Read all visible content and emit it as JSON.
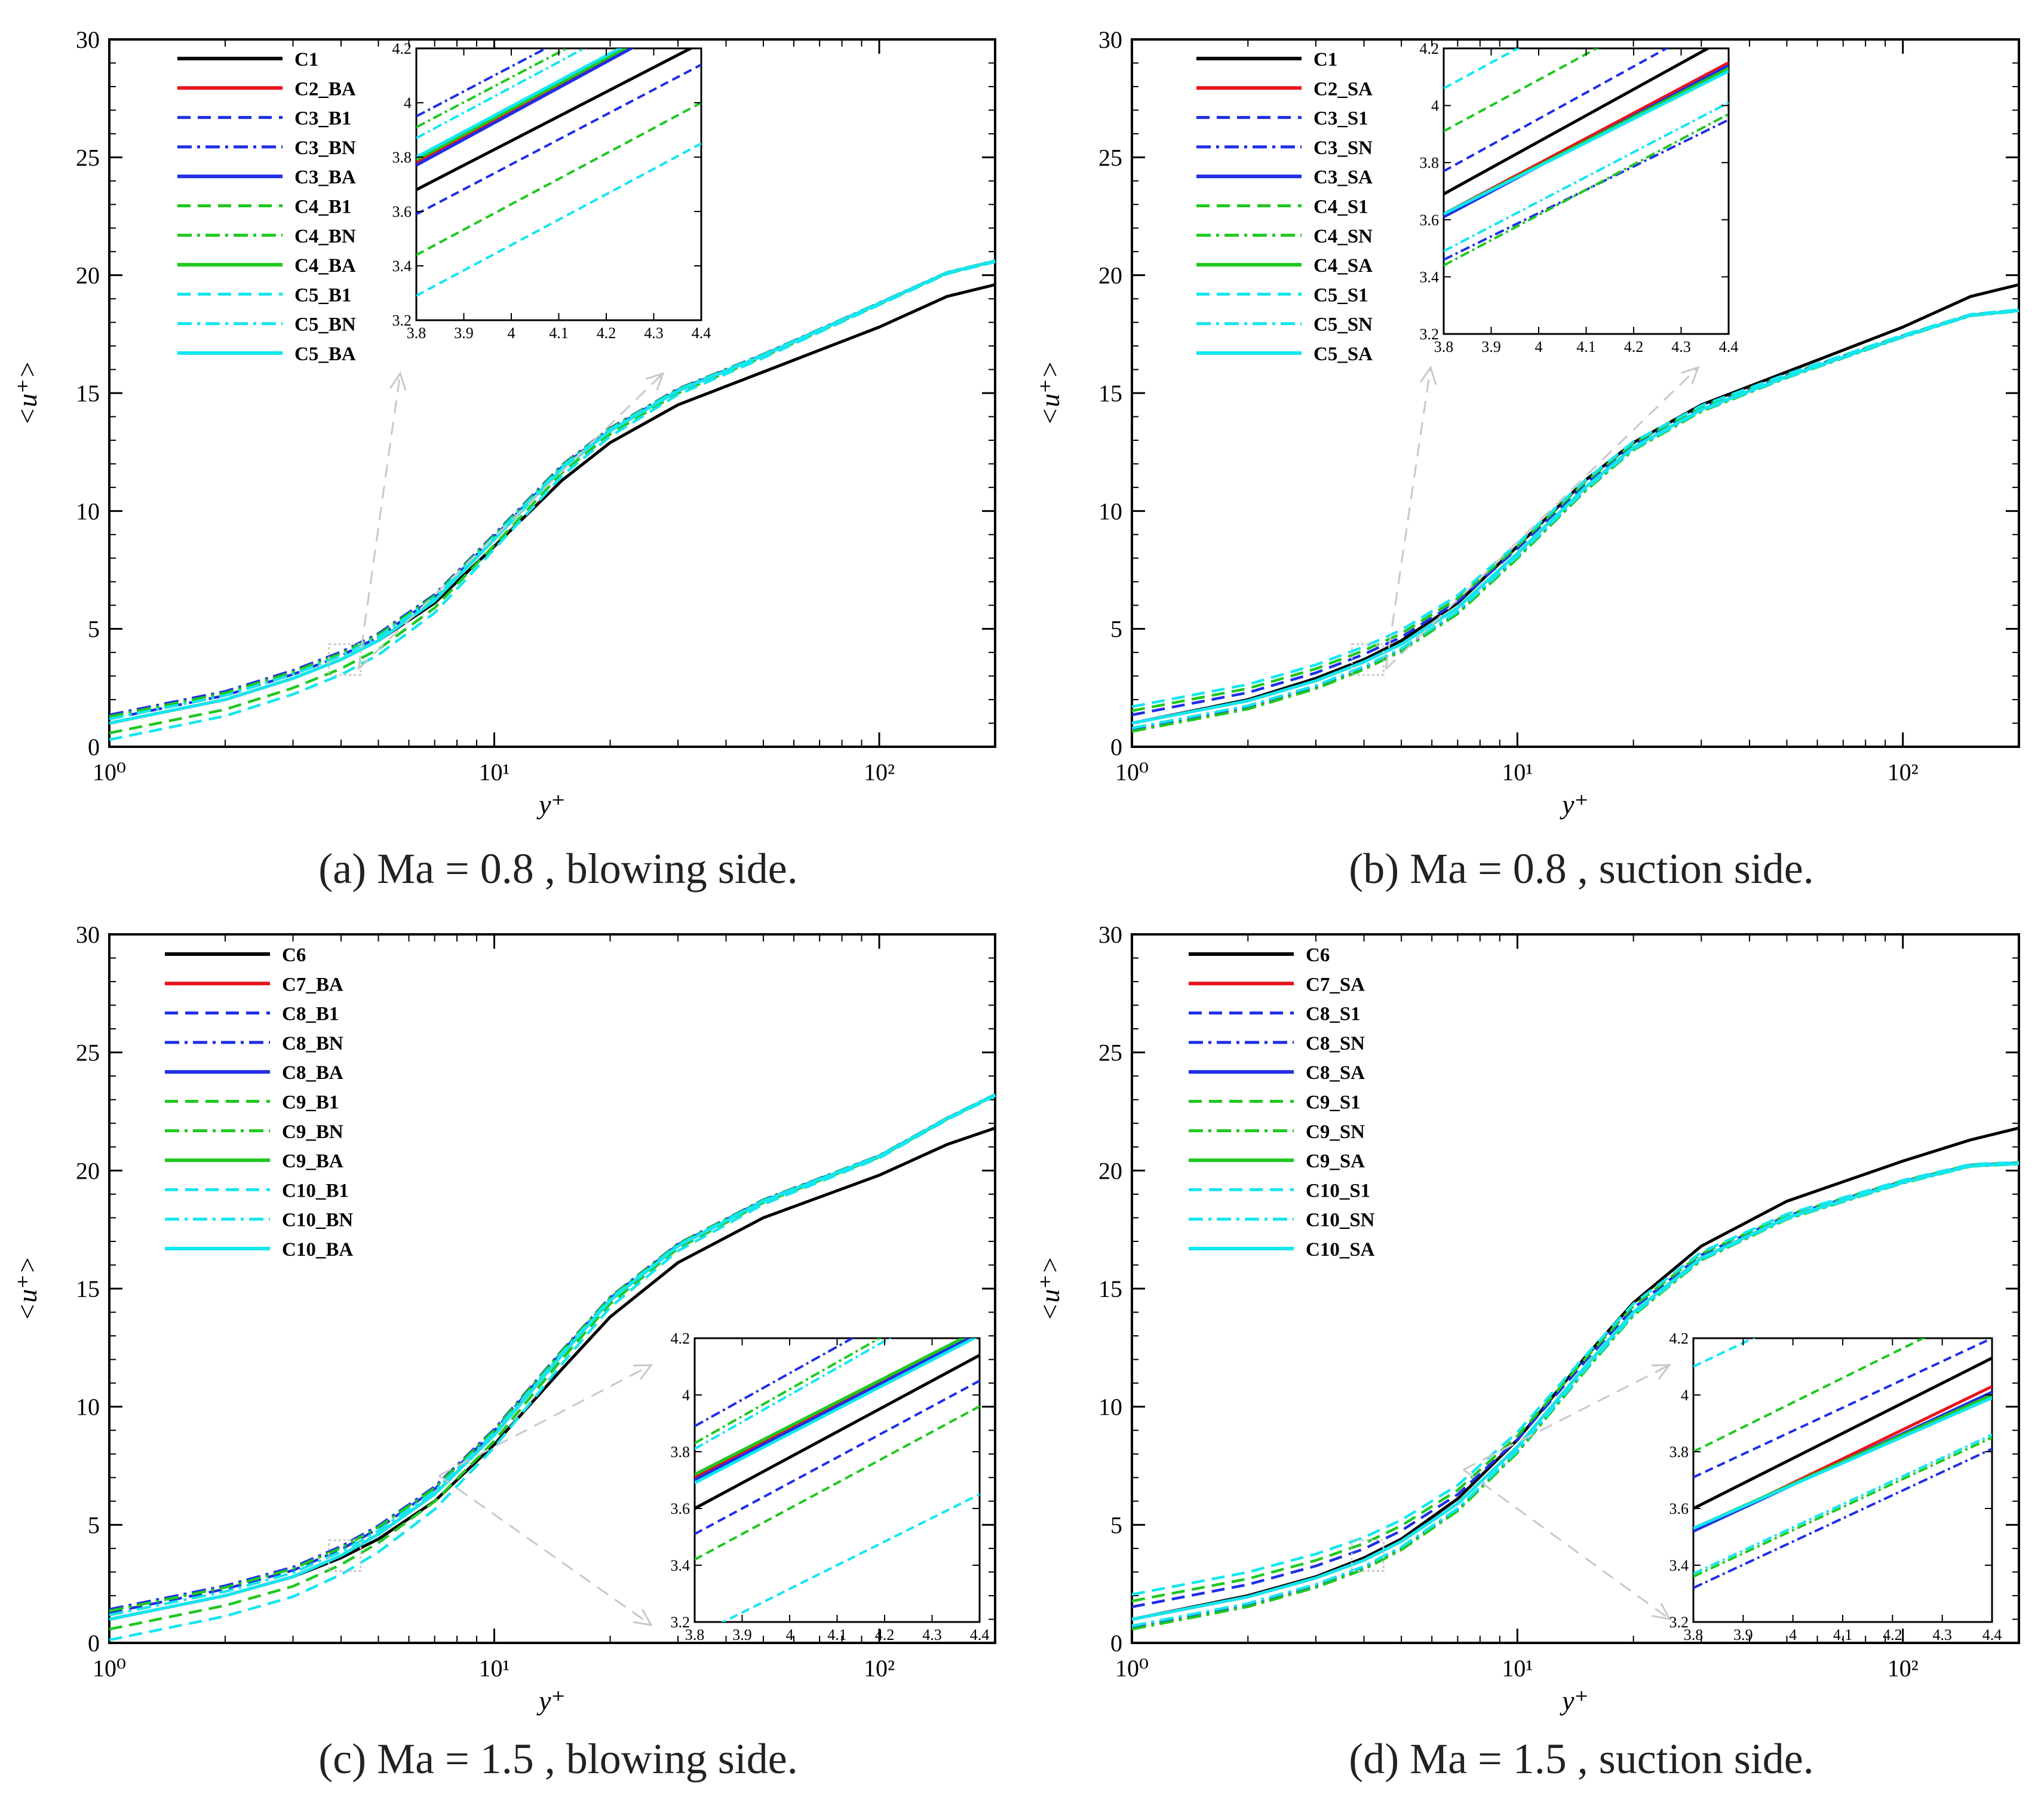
{
  "chart_data": [
    {
      "id": "a",
      "type": "line",
      "xscale": "log",
      "xlim": [
        1,
        200
      ],
      "ylim": [
        0,
        30
      ],
      "xlabel": "y⁺",
      "ylabel": "<u⁺>",
      "x_ticks": [
        "10⁰",
        "10¹",
        "10²"
      ],
      "y_ticks": [
        "0",
        "5",
        "10",
        "15",
        "20",
        "25",
        "30"
      ],
      "caption": {
        "tag": "(a)",
        "text": "Ma = 0.8 , blowing side."
      },
      "legend": [
        "C1",
        "C2_BA",
        "C3_B1",
        "C3_BN",
        "C3_BA",
        "C4_B1",
        "C4_BN",
        "C4_BA",
        "C5_B1",
        "C5_BN",
        "C5_BA"
      ],
      "legend_position": "top-left",
      "main_curves": {
        "reference": {
          "x": [
            1,
            2,
            3,
            4,
            5,
            7,
            10,
            15,
            20,
            30,
            50,
            100,
            150,
            200
          ],
          "y": [
            1.0,
            2.0,
            2.9,
            3.7,
            4.5,
            6.1,
            8.5,
            11.3,
            12.9,
            14.5,
            15.9,
            17.8,
            19.1,
            19.6
          ]
        },
        "control": {
          "x": [
            1,
            2,
            3,
            4,
            5,
            7,
            10,
            15,
            20,
            30,
            50,
            100,
            150,
            200
          ],
          "y": [
            1.0,
            2.0,
            2.9,
            3.7,
            4.5,
            6.2,
            8.8,
            11.8,
            13.4,
            15.1,
            16.6,
            18.8,
            20.1,
            20.6
          ]
        },
        "offsets": [
          0,
          0,
          0.05,
          0.1,
          0,
          -0.12,
          0.08,
          0,
          -0.2,
          0.05,
          0
        ]
      },
      "inset": {
        "xlim": [
          3.8,
          4.4
        ],
        "ylim": [
          3.2,
          4.2
        ],
        "x_ticks": [
          "3.8",
          "3.9",
          "4",
          "4.1",
          "4.2",
          "4.3",
          "4.4"
        ],
        "y_ticks": [
          "3.2",
          "3.4",
          "3.6",
          "3.8",
          "4",
          "4.2"
        ],
        "series": [
          {
            "name": "C1",
            "y": [
              3.68,
              4.22
            ]
          },
          {
            "name": "C2_BA",
            "y": [
              3.78,
              4.35
            ]
          },
          {
            "name": "C3_B1",
            "y": [
              3.59,
              4.14
            ]
          },
          {
            "name": "C3_BN",
            "y": [
              3.95,
              4.5
            ]
          },
          {
            "name": "C3_BA",
            "y": [
              3.77,
              4.34
            ]
          },
          {
            "name": "C4_B1",
            "y": [
              3.44,
              4.0
            ]
          },
          {
            "name": "C4_BN",
            "y": [
              3.91,
              4.46
            ]
          },
          {
            "name": "C4_BA",
            "y": [
              3.79,
              4.35
            ]
          },
          {
            "name": "C5_B1",
            "y": [
              3.29,
              3.85
            ]
          },
          {
            "name": "C5_BN",
            "y": [
              3.87,
              4.43
            ]
          },
          {
            "name": "C5_BA",
            "y": [
              3.8,
              4.36
            ]
          }
        ]
      }
    },
    {
      "id": "b",
      "type": "line",
      "xscale": "log",
      "xlim": [
        1,
        200
      ],
      "ylim": [
        0,
        30
      ],
      "xlabel": "y⁺",
      "ylabel": "<u⁺>",
      "x_ticks": [
        "10⁰",
        "10¹",
        "10²"
      ],
      "y_ticks": [
        "0",
        "5",
        "10",
        "15",
        "20",
        "25",
        "30"
      ],
      "caption": {
        "tag": "(b)",
        "text": "Ma = 0.8 , suction side."
      },
      "legend": [
        "C1",
        "C2_SA",
        "C3_S1",
        "C3_SN",
        "C3_SA",
        "C4_S1",
        "C4_SN",
        "C4_SA",
        "C5_S1",
        "C5_SN",
        "C5_SA"
      ],
      "legend_position": "top-left",
      "main_curves": {
        "reference": {
          "x": [
            1,
            2,
            3,
            4,
            5,
            7,
            10,
            15,
            20,
            30,
            50,
            100,
            150,
            200
          ],
          "y": [
            1.0,
            2.0,
            2.9,
            3.7,
            4.5,
            6.1,
            8.5,
            11.3,
            12.9,
            14.5,
            15.9,
            17.8,
            19.1,
            19.6
          ]
        },
        "control": {
          "x": [
            1,
            2,
            3,
            4,
            5,
            7,
            10,
            15,
            20,
            30,
            50,
            100,
            150,
            200
          ],
          "y": [
            1.0,
            1.95,
            2.8,
            3.6,
            4.35,
            5.9,
            8.2,
            11.0,
            12.7,
            14.3,
            15.7,
            17.4,
            18.3,
            18.5
          ]
        },
        "offsets": [
          0,
          0,
          0.1,
          -0.08,
          0,
          0.15,
          -0.1,
          0,
          0.2,
          -0.06,
          0
        ]
      },
      "inset": {
        "xlim": [
          3.8,
          4.4
        ],
        "ylim": [
          3.2,
          4.2
        ],
        "x_ticks": [
          "3.8",
          "3.9",
          "4",
          "4.1",
          "4.2",
          "4.3",
          "4.4"
        ],
        "y_ticks": [
          "3.2",
          "3.4",
          "3.6",
          "3.8",
          "4",
          "4.2"
        ],
        "series": [
          {
            "name": "C1",
            "y": [
              3.69,
              4.24
            ]
          },
          {
            "name": "C2_SA",
            "y": [
              3.62,
              4.15
            ]
          },
          {
            "name": "C3_S1",
            "y": [
              3.77,
              4.32
            ]
          },
          {
            "name": "C3_SN",
            "y": [
              3.46,
              3.95
            ]
          },
          {
            "name": "C3_SA",
            "y": [
              3.61,
              4.14
            ]
          },
          {
            "name": "C4_S1",
            "y": [
              3.91,
              4.45
            ]
          },
          {
            "name": "C4_SN",
            "y": [
              3.44,
              3.97
            ]
          },
          {
            "name": "C4_SA",
            "y": [
              3.62,
              4.13
            ]
          },
          {
            "name": "C5_S1",
            "y": [
              4.06,
              4.6
            ]
          },
          {
            "name": "C5_SN",
            "y": [
              3.49,
              4.01
            ]
          },
          {
            "name": "C5_SA",
            "y": [
              3.62,
              4.12
            ]
          }
        ]
      }
    },
    {
      "id": "c",
      "type": "line",
      "xscale": "log",
      "xlim": [
        1,
        200
      ],
      "ylim": [
        0,
        30
      ],
      "xlabel": "y⁺",
      "ylabel": "<u⁺>",
      "x_ticks": [
        "10⁰",
        "10¹",
        "10²"
      ],
      "y_ticks": [
        "0",
        "5",
        "10",
        "15",
        "20",
        "25",
        "30"
      ],
      "caption": {
        "tag": "(c)",
        "text": "Ma = 1.5 , blowing side."
      },
      "legend": [
        "C6",
        "C7_BA",
        "C8_B1",
        "C8_BN",
        "C8_BA",
        "C9_B1",
        "C9_BN",
        "C9_BA",
        "C10_B1",
        "C10_BN",
        "C10_BA"
      ],
      "legend_position": "top-left",
      "main_curves": {
        "reference": {
          "x": [
            1,
            2,
            3,
            4,
            5,
            7,
            10,
            15,
            20,
            30,
            50,
            100,
            150,
            200
          ],
          "y": [
            1.0,
            2.0,
            2.8,
            3.6,
            4.4,
            6.0,
            8.4,
            11.6,
            13.8,
            16.1,
            18.0,
            19.8,
            21.1,
            21.8
          ]
        },
        "control": {
          "x": [
            1,
            2,
            3,
            4,
            5,
            7,
            10,
            15,
            20,
            30,
            50,
            100,
            150,
            200
          ],
          "y": [
            1.0,
            2.0,
            2.8,
            3.7,
            4.6,
            6.3,
            8.8,
            12.2,
            14.5,
            16.8,
            18.7,
            20.6,
            22.2,
            23.2
          ]
        },
        "offsets": [
          0,
          0,
          0.08,
          0.12,
          0,
          -0.12,
          0.1,
          0,
          -0.25,
          0.05,
          0
        ]
      },
      "inset": {
        "xlim": [
          3.8,
          4.4
        ],
        "ylim": [
          3.2,
          4.2
        ],
        "x_ticks": [
          "3.8",
          "3.9",
          "4",
          "4.1",
          "4.2",
          "4.3",
          "4.4"
        ],
        "y_ticks": [
          "3.2",
          "3.4",
          "3.6",
          "3.8",
          "4",
          "4.2"
        ],
        "series": [
          {
            "name": "C6",
            "y": [
              3.6,
              4.14
            ]
          },
          {
            "name": "C7_BA",
            "y": [
              3.71,
              4.22
            ]
          },
          {
            "name": "C8_B1",
            "y": [
              3.51,
              4.05
            ]
          },
          {
            "name": "C8_BN",
            "y": [
              3.89,
              4.45
            ]
          },
          {
            "name": "C8_BA",
            "y": [
              3.7,
              4.22
            ]
          },
          {
            "name": "C9_B1",
            "y": [
              3.42,
              3.96
            ]
          },
          {
            "name": "C9_BN",
            "y": [
              3.83,
              4.4
            ]
          },
          {
            "name": "C9_BA",
            "y": [
              3.72,
              4.23
            ]
          },
          {
            "name": "C10_B1",
            "y": [
              3.15,
              3.65
            ]
          },
          {
            "name": "C10_BN",
            "y": [
              3.81,
              4.38
            ]
          },
          {
            "name": "C10_BA",
            "y": [
              3.69,
              4.21
            ]
          }
        ]
      }
    },
    {
      "id": "d",
      "type": "line",
      "xscale": "log",
      "xlim": [
        1,
        200
      ],
      "ylim": [
        0,
        30
      ],
      "xlabel": "y⁺",
      "ylabel": "<u⁺>",
      "x_ticks": [
        "10⁰",
        "10¹",
        "10²"
      ],
      "y_ticks": [
        "0",
        "5",
        "10",
        "15",
        "20",
        "25",
        "30"
      ],
      "caption": {
        "tag": "(d)",
        "text": "Ma = 1.5 , suction side."
      },
      "legend": [
        "C6",
        "C7_SA",
        "C8_S1",
        "C8_SN",
        "C8_SA",
        "C9_S1",
        "C9_SN",
        "C9_SA",
        "C10_S1",
        "C10_SN",
        "C10_SA"
      ],
      "legend_position": "top-left",
      "main_curves": {
        "reference": {
          "x": [
            1,
            2,
            3,
            4,
            5,
            7,
            10,
            15,
            20,
            30,
            50,
            100,
            150,
            200
          ],
          "y": [
            1.0,
            2.0,
            2.8,
            3.6,
            4.4,
            6.1,
            8.6,
            12.1,
            14.4,
            16.8,
            18.7,
            20.4,
            21.3,
            21.8
          ]
        },
        "control": {
          "x": [
            1,
            2,
            3,
            4,
            5,
            7,
            10,
            15,
            20,
            30,
            50,
            100,
            150,
            200
          ],
          "y": [
            1.0,
            1.95,
            2.75,
            3.5,
            4.3,
            5.9,
            8.3,
            11.7,
            14.0,
            16.3,
            18.0,
            19.5,
            20.2,
            20.3
          ]
        },
        "offsets": [
          0,
          0,
          0.15,
          -0.1,
          0,
          0.22,
          -0.12,
          0,
          0.3,
          -0.08,
          0
        ]
      },
      "inset": {
        "xlim": [
          3.8,
          4.4
        ],
        "ylim": [
          3.2,
          4.2
        ],
        "x_ticks": [
          "3.8",
          "3.9",
          "4",
          "4.1",
          "4.2",
          "4.3",
          "4.4"
        ],
        "y_ticks": [
          "3.2",
          "3.4",
          "3.6",
          "3.8",
          "4",
          "4.2"
        ],
        "series": [
          {
            "name": "C6",
            "y": [
              3.6,
              4.13
            ]
          },
          {
            "name": "C7_SA",
            "y": [
              3.52,
              4.03
            ]
          },
          {
            "name": "C8_S1",
            "y": [
              3.71,
              4.2
            ]
          },
          {
            "name": "C8_SN",
            "y": [
              3.32,
              3.81
            ]
          },
          {
            "name": "C8_SA",
            "y": [
              3.52,
              4.01
            ]
          },
          {
            "name": "C9_S1",
            "y": [
              3.8,
              4.32
            ]
          },
          {
            "name": "C9_SN",
            "y": [
              3.36,
              3.85
            ]
          },
          {
            "name": "C9_SA",
            "y": [
              3.53,
              4.0
            ]
          },
          {
            "name": "C10_S1",
            "y": [
              4.1,
              4.6
            ]
          },
          {
            "name": "C10_SN",
            "y": [
              3.37,
              3.86
            ]
          },
          {
            "name": "C10_SA",
            "y": [
              3.53,
              3.99
            ]
          }
        ]
      }
    }
  ],
  "series_styles": [
    {
      "color": "#000000",
      "dash": "solid"
    },
    {
      "color": "#e8141c",
      "dash": "solid"
    },
    {
      "color": "#1f2ee6",
      "dash": "dashed"
    },
    {
      "color": "#1f2ee6",
      "dash": "dashdot"
    },
    {
      "color": "#1f2ee6",
      "dash": "solid"
    },
    {
      "color": "#1ec81e",
      "dash": "dashed"
    },
    {
      "color": "#1ec81e",
      "dash": "dashdot"
    },
    {
      "color": "#1ec81e",
      "dash": "solid"
    },
    {
      "color": "#14e6f0",
      "dash": "dashed"
    },
    {
      "color": "#14e6f0",
      "dash": "dashdot"
    },
    {
      "color": "#14e6f0",
      "dash": "solid"
    }
  ],
  "colors": {
    "axis": "#000000",
    "zoom_arrow": "#c8c8c8",
    "caption_text": "#222222"
  }
}
